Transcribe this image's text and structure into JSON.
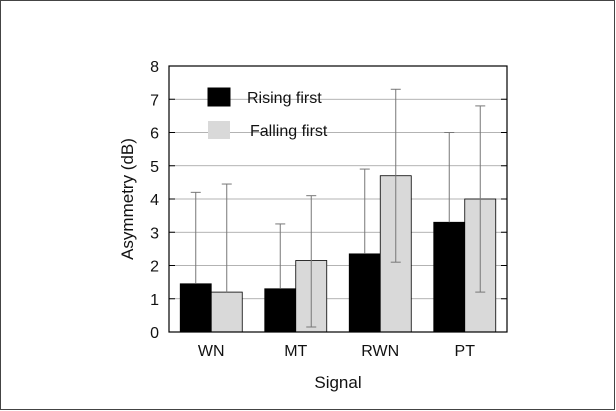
{
  "chart_data": {
    "type": "bar",
    "title": "",
    "xlabel": "Signal",
    "ylabel": "Asymmetry (dB)",
    "categories": [
      "WN",
      "MT",
      "RWN",
      "PT"
    ],
    "ylim": [
      0,
      8
    ],
    "yticks": [
      "0",
      "1",
      "2",
      "3",
      "4",
      "5",
      "6",
      "7",
      "8"
    ],
    "grid": true,
    "legend_position": "top-left",
    "series": [
      {
        "name": "Rising first",
        "color": "#000000",
        "values": [
          1.45,
          1.3,
          2.35,
          3.3
        ],
        "error_upper": [
          4.2,
          3.25,
          4.9,
          6.0
        ]
      },
      {
        "name": "Falling first",
        "color": "#d9d9d9",
        "values": [
          1.2,
          2.15,
          4.7,
          4.0
        ],
        "error_upper": [
          4.45,
          4.1,
          7.3,
          6.8
        ],
        "error_lower": [
          null,
          0.15,
          2.1,
          1.2
        ]
      }
    ]
  }
}
